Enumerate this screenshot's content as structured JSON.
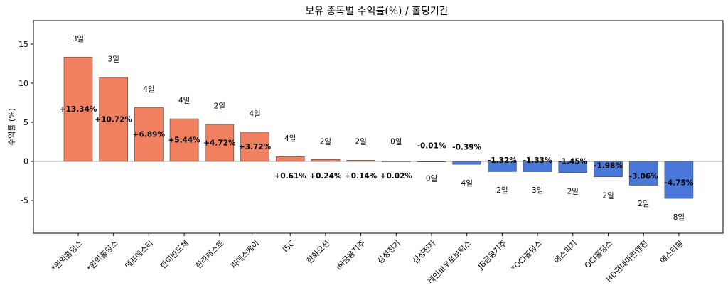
{
  "chart_data": {
    "type": "bar",
    "title": "보유 종목별 수익률(%) / 홀딩기간",
    "xlabel": "",
    "ylabel": "수익률 (%)",
    "ylim": [
      -9.2,
      18
    ],
    "yticks": [
      -5,
      0,
      5,
      10,
      15
    ],
    "categories": [
      "*원익홀딩스",
      "*원익홀딩스",
      "에프에스티",
      "한미반도체",
      "한라캐스트",
      "피에스케이",
      "ISC",
      "한화오션",
      "iM금융지주",
      "삼성전기",
      "삼성전자",
      "레인보우로보틱스",
      "JB금융지주",
      "*OCI홀딩스",
      "에스피지",
      "OCI홀딩스",
      "HD현대마린엔진",
      "에스티팜"
    ],
    "values": [
      13.34,
      10.72,
      6.89,
      5.44,
      4.72,
      3.72,
      0.61,
      0.24,
      0.14,
      0.02,
      -0.01,
      -0.39,
      -1.32,
      -1.33,
      -1.45,
      -1.98,
      -3.06,
      -4.75
    ],
    "value_labels": [
      "+13.34%",
      "+10.72%",
      "+6.89%",
      "+5.44%",
      "+4.72%",
      "+3.72%",
      "+0.61%",
      "+0.24%",
      "+0.14%",
      "+0.02%",
      "-0.01%",
      "-0.39%",
      "-1.32%",
      "-1.33%",
      "-1.45%",
      "-1.98%",
      "-3.06%",
      "-4.75%"
    ],
    "holding_days": [
      "3일",
      "3일",
      "4일",
      "4일",
      "2일",
      "4일",
      "4일",
      "2일",
      "2일",
      "0일",
      "0일",
      "4일",
      "2일",
      "3일",
      "2일",
      "2일",
      "2일",
      "8일"
    ],
    "colors": {
      "positive": "#f08060",
      "negative": "#4a78d8",
      "edge": "#444444"
    },
    "grid": false,
    "zero_line": true
  }
}
